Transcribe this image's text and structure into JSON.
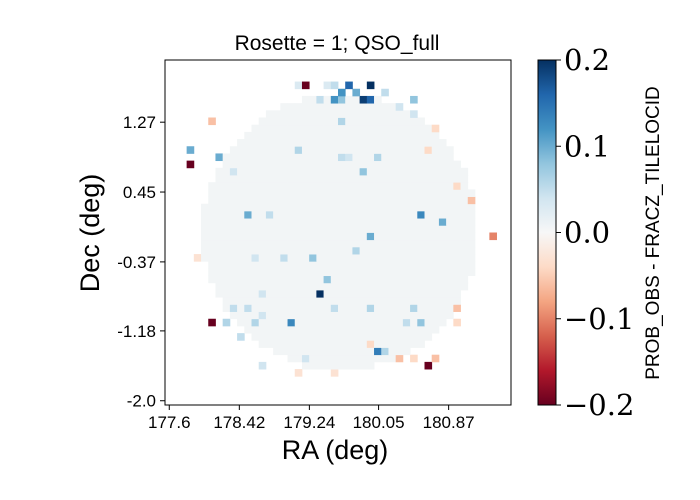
{
  "chart_data": {
    "type": "heatmap",
    "title": "Rosette = 1; QSO_full",
    "xlabel": "RA (deg)",
    "ylabel": "Dec (deg)",
    "xticks": [
      "177.6",
      "178.42",
      "179.24",
      "180.05",
      "180.87"
    ],
    "yticks": [
      "1.27",
      "0.45",
      "-0.37",
      "-1.18",
      "-2.0"
    ],
    "xtick_values": [
      177.6,
      178.42,
      179.24,
      180.05,
      180.87
    ],
    "ytick_values": [
      1.27,
      0.45,
      -0.37,
      -1.18,
      -2.0
    ],
    "xlim": [
      177.55,
      181.6
    ],
    "ylim": [
      -2.05,
      2.0
    ],
    "colorbar": {
      "label": "PROB_OBS - FRACZ_TILELOCID",
      "ticks": [
        "0.2",
        "0.1",
        "0.0",
        "−0.1",
        "−0.2"
      ],
      "tick_values": [
        0.2,
        0.1,
        0.0,
        -0.1,
        -0.2
      ],
      "vmin": -0.2,
      "vmax": 0.2,
      "colormap": "RdBu"
    },
    "grid": {
      "nx": 48,
      "ny": 48,
      "center_ra": 179.6,
      "center_dec": -0.02,
      "radius_deg": 1.62,
      "background_value": 0.005,
      "cells": [
        {
          "ra": 179.18,
          "dec": 1.74,
          "value": -0.2
        },
        {
          "ra": 179.12,
          "dec": 1.67,
          "value": 0.03
        },
        {
          "ra": 179.44,
          "dec": 1.7,
          "value": 0.03
        },
        {
          "ra": 179.56,
          "dec": 1.72,
          "value": 0.05
        },
        {
          "ra": 179.62,
          "dec": 1.66,
          "value": 0.12
        },
        {
          "ra": 179.7,
          "dec": 1.67,
          "value": 0.16
        },
        {
          "ra": 179.78,
          "dec": 1.61,
          "value": 0.1
        },
        {
          "ra": 179.85,
          "dec": 1.56,
          "value": 0.19
        },
        {
          "ra": 179.92,
          "dec": 1.57,
          "value": 0.16
        },
        {
          "ra": 179.95,
          "dec": 1.74,
          "value": 0.2
        },
        {
          "ra": 179.5,
          "dec": 1.5,
          "value": 0.12
        },
        {
          "ra": 179.58,
          "dec": 1.51,
          "value": 0.08
        },
        {
          "ra": 179.37,
          "dec": 1.55,
          "value": 0.05
        },
        {
          "ra": 180.13,
          "dec": 1.58,
          "value": 0.05
        },
        {
          "ra": 180.42,
          "dec": 1.55,
          "value": 0.08
        },
        {
          "ra": 180.27,
          "dec": 1.48,
          "value": 0.04
        },
        {
          "ra": 178.08,
          "dec": 1.3,
          "value": -0.06
        },
        {
          "ra": 179.65,
          "dec": 1.25,
          "value": 0.06
        },
        {
          "ra": 180.5,
          "dec": 1.33,
          "value": 0.04
        },
        {
          "ra": 180.7,
          "dec": 1.21,
          "value": -0.04
        },
        {
          "ra": 177.87,
          "dec": 0.98,
          "value": 0.1
        },
        {
          "ra": 178.15,
          "dec": 0.82,
          "value": 0.1
        },
        {
          "ra": 177.82,
          "dec": 0.8,
          "value": -0.2
        },
        {
          "ra": 178.32,
          "dec": 0.7,
          "value": 0.04
        },
        {
          "ra": 179.08,
          "dec": 0.98,
          "value": 0.06
        },
        {
          "ra": 179.64,
          "dec": 0.9,
          "value": 0.05
        },
        {
          "ra": 179.72,
          "dec": 0.9,
          "value": 0.04
        },
        {
          "ra": 180.05,
          "dec": 0.85,
          "value": 0.06
        },
        {
          "ra": 180.64,
          "dec": 0.93,
          "value": -0.04
        },
        {
          "ra": 180.98,
          "dec": 0.52,
          "value": -0.04
        },
        {
          "ra": 179.9,
          "dec": 0.68,
          "value": 0.08
        },
        {
          "ra": 181.1,
          "dec": 0.38,
          "value": -0.06
        },
        {
          "ra": 178.52,
          "dec": 0.18,
          "value": 0.1
        },
        {
          "ra": 178.78,
          "dec": 0.15,
          "value": 0.05
        },
        {
          "ra": 180.57,
          "dec": 0.15,
          "value": 0.13
        },
        {
          "ra": 180.82,
          "dec": 0.08,
          "value": 0.1
        },
        {
          "ra": 181.36,
          "dec": -0.1,
          "value": -0.1
        },
        {
          "ra": 179.92,
          "dec": -0.1,
          "value": 0.1
        },
        {
          "ra": 179.75,
          "dec": -0.2,
          "value": 0.06
        },
        {
          "ra": 179.28,
          "dec": -0.28,
          "value": 0.08
        },
        {
          "ra": 178.98,
          "dec": -0.36,
          "value": 0.05
        },
        {
          "ra": 178.58,
          "dec": -0.3,
          "value": 0.04
        },
        {
          "ra": 179.38,
          "dec": -0.72,
          "value": 0.2
        },
        {
          "ra": 179.45,
          "dec": -0.6,
          "value": 0.08
        },
        {
          "ra": 178.7,
          "dec": -0.75,
          "value": 0.04
        },
        {
          "ra": 178.32,
          "dec": -0.95,
          "value": 0.05
        },
        {
          "ra": 178.54,
          "dec": -0.92,
          "value": 0.05
        },
        {
          "ra": 178.7,
          "dec": -0.98,
          "value": 0.04
        },
        {
          "ra": 179.5,
          "dec": -0.92,
          "value": 0.05
        },
        {
          "ra": 179.95,
          "dec": -0.88,
          "value": 0.06
        },
        {
          "ra": 180.43,
          "dec": -0.88,
          "value": 0.06
        },
        {
          "ra": 180.34,
          "dec": -1.08,
          "value": 0.05
        },
        {
          "ra": 180.55,
          "dec": -1.1,
          "value": 0.08
        },
        {
          "ra": 180.93,
          "dec": -0.95,
          "value": -0.06
        },
        {
          "ra": 180.98,
          "dec": -1.1,
          "value": -0.04
        },
        {
          "ra": 179.04,
          "dec": -1.1,
          "value": 0.13
        },
        {
          "ra": 178.57,
          "dec": -1.1,
          "value": 0.06
        },
        {
          "ra": 178.24,
          "dec": -1.1,
          "value": 0.06
        },
        {
          "ra": 178.13,
          "dec": -1.08,
          "value": -0.2
        },
        {
          "ra": 178.44,
          "dec": -1.24,
          "value": 0.05
        },
        {
          "ra": 179.98,
          "dec": -1.34,
          "value": -0.04
        },
        {
          "ra": 180.08,
          "dec": -1.41,
          "value": 0.14
        },
        {
          "ra": 180.15,
          "dec": -1.44,
          "value": 0.06
        },
        {
          "ra": 180.26,
          "dec": -1.52,
          "value": -0.06
        },
        {
          "ra": 180.45,
          "dec": -1.53,
          "value": -0.04
        },
        {
          "ra": 180.6,
          "dec": -1.57,
          "value": -0.2
        },
        {
          "ra": 180.72,
          "dec": -1.52,
          "value": -0.06
        },
        {
          "ra": 179.2,
          "dec": -1.48,
          "value": 0.04
        },
        {
          "ra": 178.7,
          "dec": -1.55,
          "value": 0.04
        },
        {
          "ra": 179.52,
          "dec": -1.68,
          "value": -0.03
        },
        {
          "ra": 179.1,
          "dec": -1.66,
          "value": -0.03
        },
        {
          "ra": 177.9,
          "dec": -0.3,
          "value": -0.03
        }
      ]
    }
  }
}
